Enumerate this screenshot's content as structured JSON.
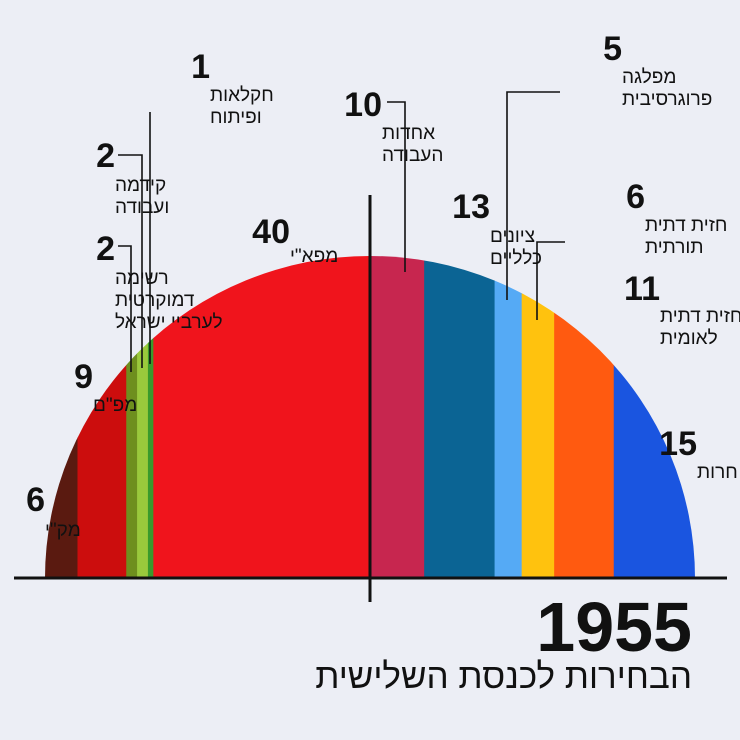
{
  "title": "1955",
  "subtitle": "הבחירות לכנסת השלישית",
  "colors": {
    "background": "#eceef5",
    "ink": "#111111"
  },
  "chart_data": {
    "type": "bar",
    "categories": [
      "מק\"י",
      "מפ\"ם",
      "רשימה דמוקרטית לערביי ישראל",
      "קידמה ועבודה",
      "חקלאות ופיתוח",
      "מפא\"י",
      "אחדות העבודה",
      "ציונים כלליים",
      "מפלגה פרוגרסיבית",
      "חזית דתית תורתית",
      "חזית דתית לאומית",
      "חרות"
    ],
    "values": [
      6,
      9,
      2,
      2,
      1,
      40,
      10,
      13,
      5,
      6,
      11,
      15
    ],
    "series": [
      {
        "values": [
          6,
          9,
          2,
          2,
          1,
          40,
          10,
          13,
          5,
          6,
          11,
          15
        ]
      }
    ],
    "parties": [
      {
        "name": "מק\"י",
        "name_lines": [
          "מק\"י"
        ],
        "seats": 6,
        "color": "#5a1a10"
      },
      {
        "name": "מפ\"ם",
        "name_lines": [
          "מפ\"ם"
        ],
        "seats": 9,
        "color": "#cc0d0d"
      },
      {
        "name": "רשימה דמוקרטית לערביי ישראל",
        "name_lines": [
          "רשימה",
          "דמוקרטית",
          "לערביי ישראל"
        ],
        "seats": 2,
        "color": "#6e8f1e"
      },
      {
        "name": "קידמה ועבודה",
        "name_lines": [
          "קידמה",
          "ועבודה"
        ],
        "seats": 2,
        "color": "#9ac93c"
      },
      {
        "name": "חקלאות ופיתוח",
        "name_lines": [
          "חקלאות",
          "ופיתוח"
        ],
        "seats": 1,
        "color": "#3a9a2c"
      },
      {
        "name": "מפא\"י",
        "name_lines": [
          "מפא\"י"
        ],
        "seats": 40,
        "color": "#f0141c"
      },
      {
        "name": "אחדות העבודה",
        "name_lines": [
          "אחדות",
          "העבודה"
        ],
        "seats": 10,
        "color": "#c7264f"
      },
      {
        "name": "ציונים כלליים",
        "name_lines": [
          "ציונים",
          "כלליים"
        ],
        "seats": 13,
        "color": "#0b6494"
      },
      {
        "name": "מפלגה פרוגרסיבית",
        "name_lines": [
          "מפלגה",
          "פרוגרסיבית"
        ],
        "seats": 5,
        "color": "#55aaf5"
      },
      {
        "name": "חזית דתית תורתית",
        "name_lines": [
          "חזית דתית",
          "תורתית"
        ],
        "seats": 6,
        "color": "#ffc20e"
      },
      {
        "name": "חזית דתית לאומית",
        "name_lines": [
          "חזית דתית",
          "לאומית"
        ],
        "seats": 11,
        "color": "#ff5a10"
      },
      {
        "name": "חרות",
        "name_lines": [
          "חרות"
        ],
        "seats": 15,
        "color": "#1a55e0"
      }
    ],
    "total_seats": 120,
    "majority_line": true
  }
}
